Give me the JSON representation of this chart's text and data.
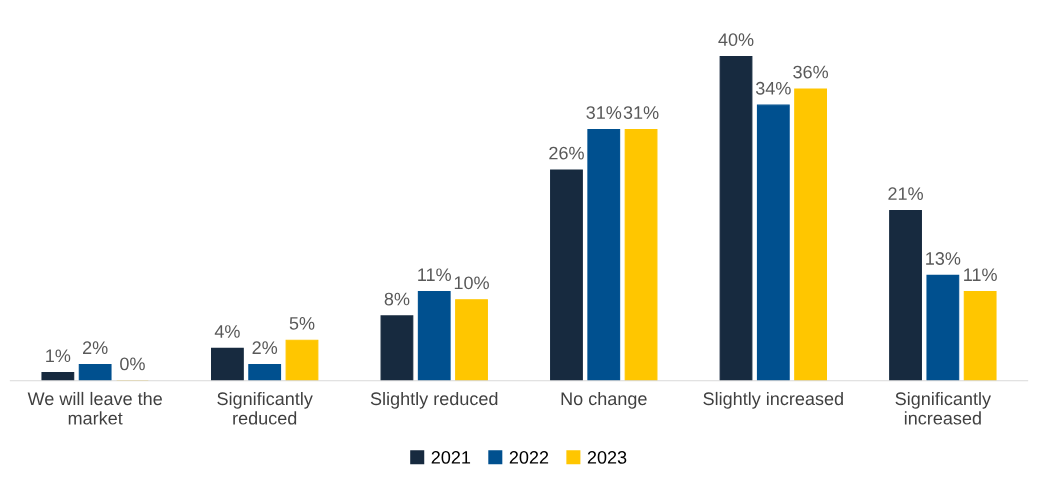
{
  "chart_data": {
    "type": "bar",
    "categories": [
      "We will leave the\nmarket",
      "Significantly\nreduced",
      "Slightly reduced",
      "No change",
      "Slightly increased",
      "Significantly\nincreased"
    ],
    "series": [
      {
        "name": "2021",
        "color": "#172a3f",
        "values": [
          1,
          4,
          8,
          26,
          40,
          21
        ],
        "value_labels": [
          "1%",
          "4%",
          "8%",
          "26%",
          "40%",
          "21%"
        ]
      },
      {
        "name": "2022",
        "color": "#00508f",
        "values": [
          2,
          2,
          11,
          31,
          34,
          13
        ],
        "value_labels": [
          "2%",
          "2%",
          "11%",
          "31%",
          "34%",
          "13%"
        ]
      },
      {
        "name": "2023",
        "color": "#ffc600",
        "values": [
          0,
          5,
          10,
          31,
          36,
          11
        ],
        "value_labels": [
          "0%",
          "5%",
          "10%",
          "31%",
          "36%",
          "11%"
        ]
      }
    ],
    "grid": false,
    "legend": "bottom",
    "tick_labels": "x"
  }
}
